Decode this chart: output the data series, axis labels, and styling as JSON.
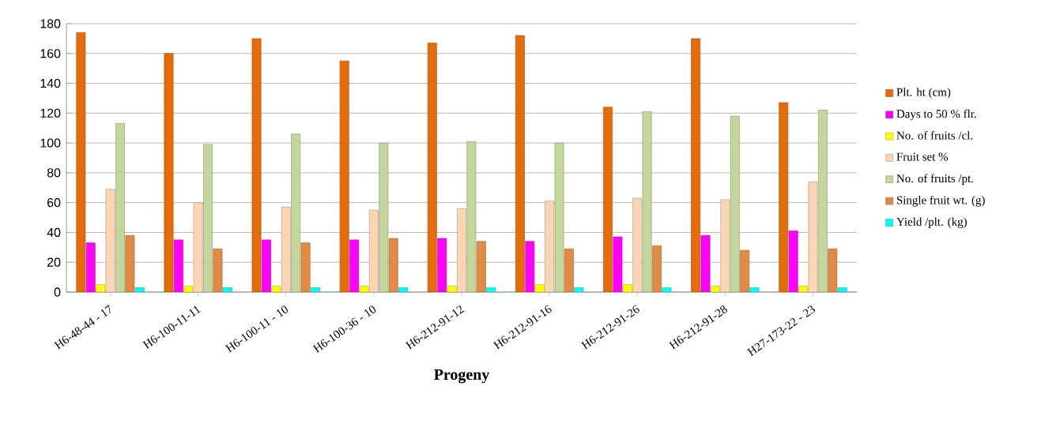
{
  "chart_data": {
    "type": "bar",
    "xlabel": "Progeny",
    "categories": [
      "H6-48-44 - 17",
      "H6-100-11-11",
      "H6-100-11 - 10",
      "H6-100-36 - 10",
      "H6-212-91-12",
      "H6-212-91-16",
      "H6-212-91-26",
      "H6-212-91-28",
      "H27-173-22 - 23"
    ],
    "series": [
      {
        "name": "Plt. ht (cm)",
        "color": "#e46c0a",
        "values": [
          174,
          160,
          170,
          155,
          167,
          172,
          124,
          170,
          127
        ]
      },
      {
        "name": "Days to 50 % flr.",
        "color": "#ff00ff",
        "values": [
          33,
          35,
          35,
          35,
          36,
          34,
          37,
          38,
          41
        ]
      },
      {
        "name": "No. of fruits /cl.",
        "color": "#ffff00",
        "values": [
          5,
          4,
          4,
          4,
          4,
          5,
          5,
          4,
          4
        ]
      },
      {
        "name": "Fruit set %",
        "color": "#fcd5b5",
        "values": [
          69,
          60,
          57,
          55,
          56,
          61,
          63,
          62,
          74
        ]
      },
      {
        "name": "No. of fruits /pt.",
        "color": "#c3d69b",
        "values": [
          113,
          99,
          106,
          100,
          101,
          100,
          121,
          118,
          122
        ]
      },
      {
        "name": "Single fruit wt. (g)",
        "color": "#e08a45",
        "values": [
          38,
          29,
          33,
          36,
          34,
          29,
          31,
          28,
          29
        ]
      },
      {
        "name": "Yield /plt. (kg)",
        "color": "#00ffff",
        "values": [
          3,
          3,
          3,
          3,
          3,
          3,
          3,
          3,
          3
        ]
      }
    ],
    "ylim": [
      0,
      180
    ],
    "yticks": [
      0,
      20,
      40,
      60,
      80,
      100,
      120,
      140,
      160,
      180
    ],
    "grid": "y",
    "legend": "right"
  }
}
